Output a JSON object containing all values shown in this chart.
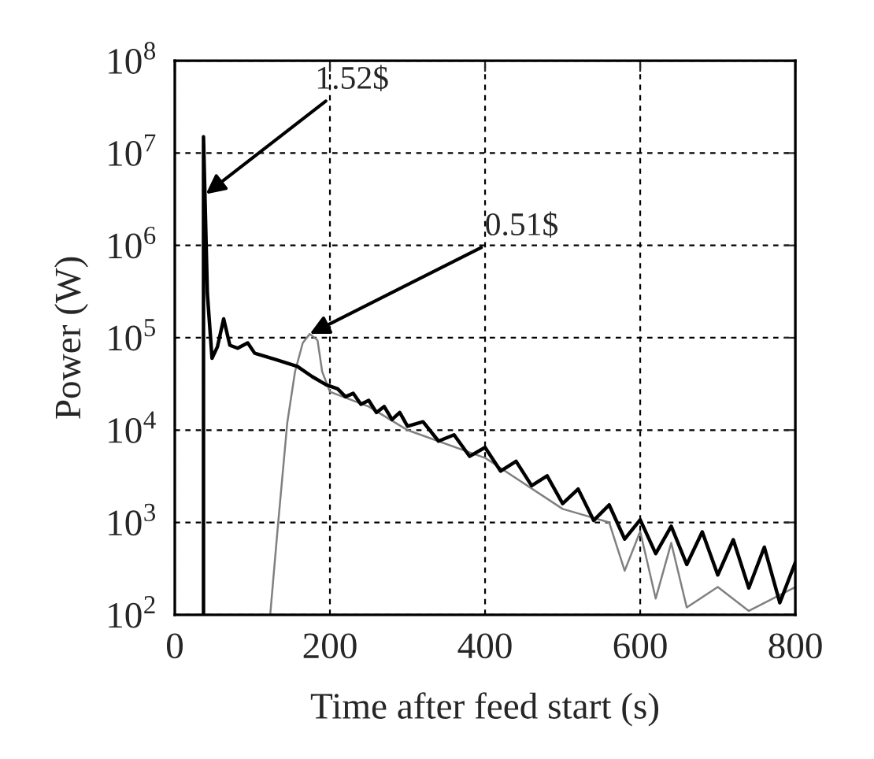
{
  "chart_data": {
    "type": "line",
    "xlabel": "Time after feed start (s)",
    "ylabel": "Power (W)",
    "log": "y",
    "grid": true,
    "xlim": [
      0,
      800
    ],
    "xticks": [
      0,
      200,
      400,
      600,
      800
    ],
    "ylim": [
      100,
      100000000
    ],
    "yticks": [
      {
        "value": 100,
        "label": "10$^{2}$"
      },
      {
        "value": 1000,
        "label": "10$^{3}$"
      },
      {
        "value": 10000,
        "label": "10$^{4}$"
      },
      {
        "value": 100000,
        "label": "10$^{5}$"
      },
      {
        "value": 1000000,
        "label": "10$^{6}$"
      },
      {
        "value": 10000000,
        "label": "10$^{7}$"
      },
      {
        "value": 100000000,
        "label": "10$^{8}$"
      }
    ],
    "series": [
      {
        "color": "#000000",
        "x": [
          37,
          37,
          42,
          48,
          55,
          63,
          71,
          81,
          94,
          103,
          130,
          158,
          177,
          195,
          210,
          220,
          230,
          240,
          250,
          260,
          270,
          280,
          290,
          300,
          320,
          340,
          360,
          380,
          400,
          420,
          440,
          460,
          480,
          500,
          520,
          540,
          560,
          580,
          600,
          620,
          640,
          660,
          680,
          700,
          720,
          740,
          760,
          780,
          800
        ],
        "values": [
          100,
          15000000,
          300000,
          60000,
          80000,
          160000,
          83000,
          77000,
          88000,
          68000,
          58000,
          49000,
          38000,
          31000,
          28000,
          23000,
          25000,
          19000,
          21000,
          15500,
          18000,
          13000,
          15500,
          11000,
          12300,
          7600,
          8900,
          5200,
          6500,
          3600,
          4600,
          2500,
          3200,
          1600,
          2300,
          1050,
          1550,
          660,
          1070,
          460,
          910,
          350,
          790,
          270,
          650,
          195,
          540,
          135,
          370
        ]
      },
      {
        "color": "#808080",
        "x": [
          123,
          132,
          145,
          155,
          165,
          174,
          184,
          190,
          200,
          250,
          300,
          400,
          500,
          560,
          580,
          600,
          620,
          640,
          660,
          700,
          740,
          800
        ],
        "values": [
          100,
          750,
          12000,
          43000,
          88000,
          110000,
          94000,
          43000,
          26000,
          18000,
          10000,
          5000,
          1400,
          1000,
          300,
          800,
          150,
          600,
          120,
          200,
          110,
          200
        ]
      }
    ],
    "annotations": [
      {
        "text": "1.52$",
        "x": 40,
        "y": 3600000
      },
      {
        "text": "0.51$",
        "x": 174,
        "y": 110000
      }
    ]
  }
}
